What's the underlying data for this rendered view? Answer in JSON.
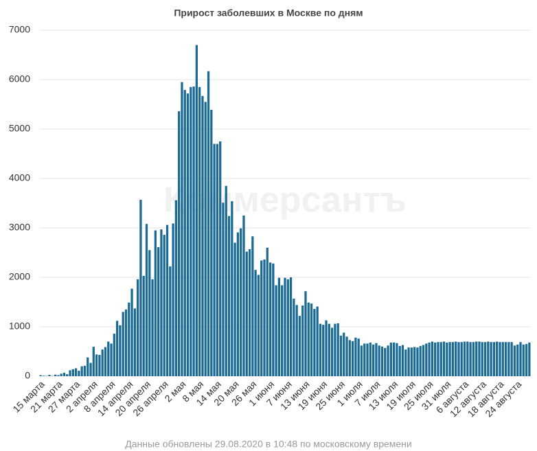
{
  "chart_data": {
    "type": "bar",
    "title": "Прирост заболевших в Москве по дням",
    "watermark": "Коммерсантъ",
    "footnote": "Данные обновлены 29.08.2020 в 10:48 по московскому времени",
    "color": "#1a6a94",
    "grid": true,
    "ylim": [
      0,
      7000
    ],
    "yticks": [
      0,
      1000,
      2000,
      3000,
      4000,
      5000,
      6000,
      7000
    ],
    "categories": [
      "15 марта",
      null,
      null,
      null,
      null,
      null,
      "21 марта",
      null,
      null,
      null,
      null,
      null,
      "27 марта",
      null,
      null,
      null,
      null,
      null,
      "2 апреля",
      null,
      null,
      null,
      null,
      null,
      "8 апреля",
      null,
      null,
      null,
      null,
      null,
      "14 апреля",
      null,
      null,
      null,
      null,
      null,
      "20 апреля",
      null,
      null,
      null,
      null,
      null,
      "26 апреля",
      null,
      null,
      null,
      null,
      null,
      "2 мая",
      null,
      null,
      null,
      null,
      null,
      "8 мая",
      null,
      null,
      null,
      null,
      null,
      "14 мая",
      null,
      null,
      null,
      null,
      null,
      "20 мая",
      null,
      null,
      null,
      null,
      null,
      "26 мая",
      null,
      null,
      null,
      null,
      null,
      "1 июня",
      null,
      null,
      null,
      null,
      null,
      "7 июня",
      null,
      null,
      null,
      null,
      null,
      "13 июня",
      null,
      null,
      null,
      null,
      null,
      "19 июня",
      null,
      null,
      null,
      null,
      null,
      "25 июня",
      null,
      null,
      null,
      null,
      null,
      "1 июля",
      null,
      null,
      null,
      null,
      null,
      "7 июля",
      null,
      null,
      null,
      null,
      null,
      "13 июля",
      null,
      null,
      null,
      null,
      null,
      "19 июля",
      null,
      null,
      null,
      null,
      null,
      "25 июля",
      null,
      null,
      null,
      null,
      null,
      "31 июля",
      null,
      null,
      null,
      null,
      null,
      "6 августа",
      null,
      null,
      null,
      null,
      null,
      "12 августа",
      null,
      null,
      null,
      null,
      null,
      "18 августа",
      null,
      null,
      null,
      null,
      null,
      "24 августа",
      null,
      null,
      null,
      null
    ],
    "values": [
      20,
      10,
      5,
      25,
      5,
      30,
      20,
      50,
      70,
      40,
      120,
      140,
      160,
      110,
      200,
      210,
      380,
      270,
      595,
      440,
      430,
      540,
      590,
      700,
      660,
      860,
      1120,
      1030,
      1300,
      1350,
      1490,
      1770,
      1370,
      1960,
      3570,
      2030,
      3080,
      2550,
      1960,
      2950,
      2610,
      2970,
      2860,
      3060,
      2220,
      3090,
      3560,
      5360,
      5950,
      5790,
      5720,
      5850,
      5860,
      6700,
      5850,
      5670,
      5550,
      6170,
      5390,
      4700,
      4700,
      4750,
      3510,
      3850,
      3240,
      3540,
      2700,
      2910,
      2990,
      3250,
      2520,
      2570,
      2830,
      2150,
      2050,
      2340,
      2360,
      2600,
      2300,
      2280,
      1840,
      1990,
      1840,
      1990,
      1960,
      2000,
      1570,
      1440,
      1220,
      1430,
      1720,
      1490,
      1470,
      1360,
      1410,
      1060,
      1040,
      1130,
      1060,
      980,
      1060,
      1070,
      820,
      880,
      800,
      730,
      710,
      780,
      760,
      620,
      660,
      660,
      680,
      640,
      670,
      620,
      600,
      570,
      620,
      680,
      680,
      670,
      610,
      630,
      540,
      580,
      580,
      590,
      580,
      610,
      630,
      660,
      680,
      700,
      680,
      690,
      690,
      700,
      680,
      690,
      690,
      700,
      690,
      690,
      700,
      700,
      690,
      690,
      700,
      700,
      690,
      690,
      700,
      690,
      690,
      700,
      690,
      690,
      690,
      690,
      690,
      620,
      640,
      690,
      640,
      650,
      680
    ]
  }
}
